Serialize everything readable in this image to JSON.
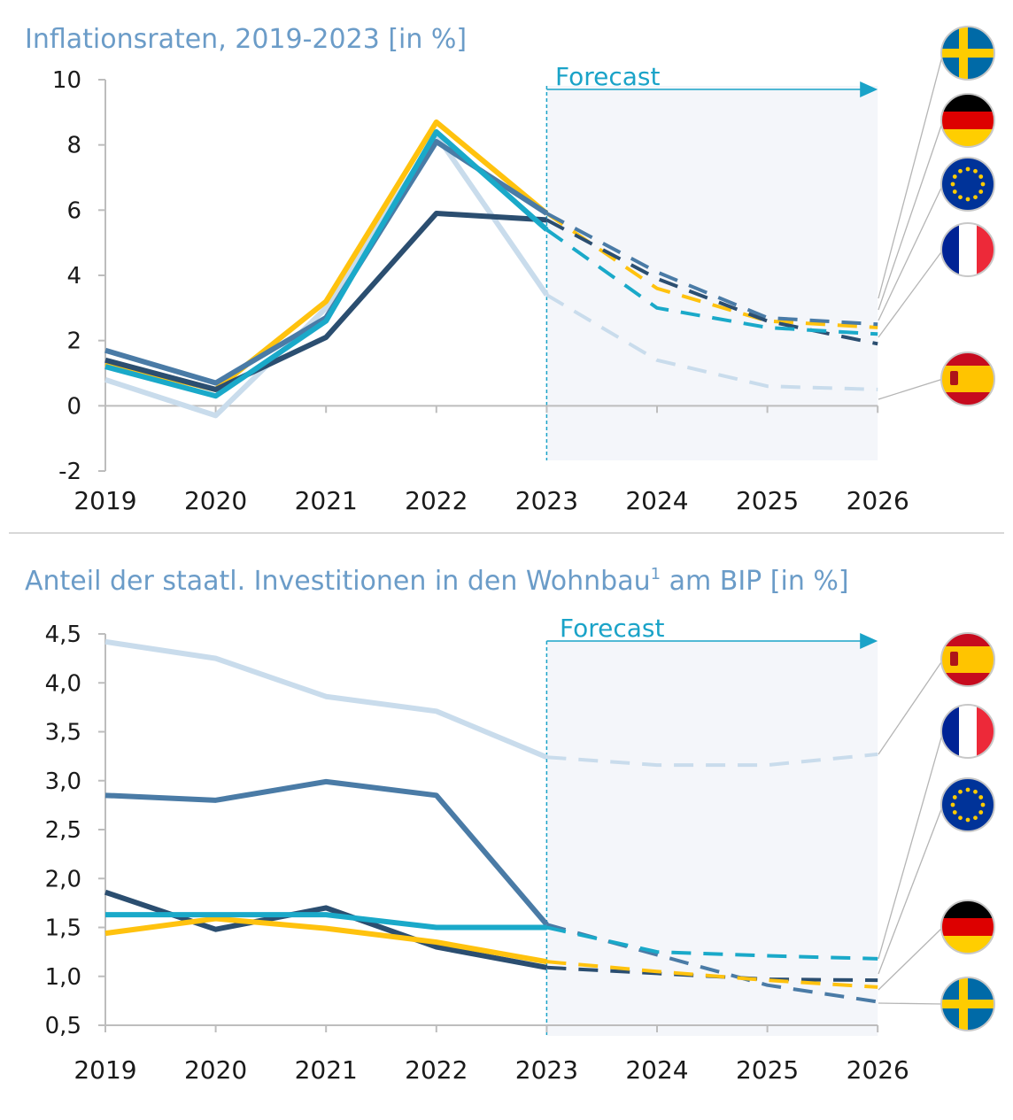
{
  "colors": {
    "SE": "#4a7ba6",
    "DE": "#2b4e70",
    "EU": "#1aa9c9",
    "FR": "#ffc20e",
    "ES": "#c9dcec",
    "forecast_bg": "#f4f6fa",
    "forecast_line": "#1aa3c8",
    "title": "#6b9cc8"
  },
  "chart_data": [
    {
      "type": "line",
      "title": "Inflationsraten, 2019-2023 [in %]",
      "forecast_label": "Forecast",
      "x": [
        "2019",
        "2020",
        "2021",
        "2022",
        "2023",
        "2024",
        "2025",
        "2026"
      ],
      "forecast_start": "2023",
      "ylim": [
        -2,
        10
      ],
      "yticks": [
        "-2",
        "0",
        "2",
        "4",
        "6",
        "8",
        "10"
      ],
      "grid": false,
      "series": [
        {
          "country": "ES",
          "flag": "spain-flag-icon",
          "values": [
            0.8,
            -0.3,
            3.0,
            8.3,
            3.4,
            1.4,
            0.6,
            0.5
          ]
        },
        {
          "country": "FR",
          "flag": "france-flag-icon",
          "values": [
            1.3,
            0.5,
            3.2,
            8.7,
            5.9,
            3.6,
            2.6,
            2.4
          ]
        },
        {
          "country": "SE",
          "flag": "sweden-flag-icon",
          "values": [
            1.7,
            0.7,
            2.7,
            8.1,
            5.9,
            4.1,
            2.7,
            2.5
          ]
        },
        {
          "country": "DE",
          "flag": "germany-flag-icon",
          "values": [
            1.4,
            0.5,
            2.1,
            5.9,
            5.7,
            3.9,
            2.6,
            1.9
          ]
        },
        {
          "country": "EU",
          "flag": "eu-flag-icon",
          "values": [
            1.2,
            0.3,
            2.6,
            8.4,
            5.4,
            3.0,
            2.4,
            2.2
          ]
        }
      ],
      "legend_order": [
        "sweden-flag-icon",
        "germany-flag-icon",
        "eu-flag-icon",
        "france-flag-icon",
        "spain-flag-icon"
      ]
    },
    {
      "type": "line",
      "title": "Anteil der staatl. Investitionen in den Wohnbau",
      "title_sup": "1",
      "title_rest": " am BIP [in %]",
      "forecast_label": "Forecast",
      "x": [
        "2019",
        "2020",
        "2021",
        "2022",
        "2023",
        "2024",
        "2025",
        "2026"
      ],
      "forecast_start": "2023",
      "ylim": [
        0.5,
        4.5
      ],
      "yticks": [
        "0,5",
        "1,0",
        "1,5",
        "2,0",
        "2,5",
        "3,0",
        "3,5",
        "4,0",
        "4,5"
      ],
      "grid": false,
      "series": [
        {
          "country": "ES",
          "flag": "spain-flag-icon",
          "values": [
            4.42,
            4.25,
            3.86,
            3.71,
            3.24,
            3.16,
            3.16,
            3.27
          ]
        },
        {
          "country": "SE",
          "flag": "sweden-flag-icon",
          "values": [
            2.85,
            2.8,
            2.99,
            2.85,
            1.53,
            1.22,
            0.91,
            0.74
          ]
        },
        {
          "country": "DE",
          "flag": "germany-flag-icon",
          "values": [
            1.86,
            1.48,
            1.7,
            1.3,
            1.09,
            1.03,
            0.97,
            0.96
          ]
        },
        {
          "country": "FR",
          "flag": "france-flag-icon",
          "values": [
            1.44,
            1.59,
            1.49,
            1.35,
            1.15,
            1.05,
            0.96,
            0.89
          ]
        },
        {
          "country": "EU",
          "flag": "eu-flag-icon",
          "values": [
            1.63,
            1.63,
            1.63,
            1.5,
            1.5,
            1.25,
            1.21,
            1.18
          ]
        }
      ],
      "legend_order": [
        "spain-flag-icon",
        "france-flag-icon",
        "eu-flag-icon",
        "germany-flag-icon",
        "sweden-flag-icon"
      ]
    }
  ]
}
